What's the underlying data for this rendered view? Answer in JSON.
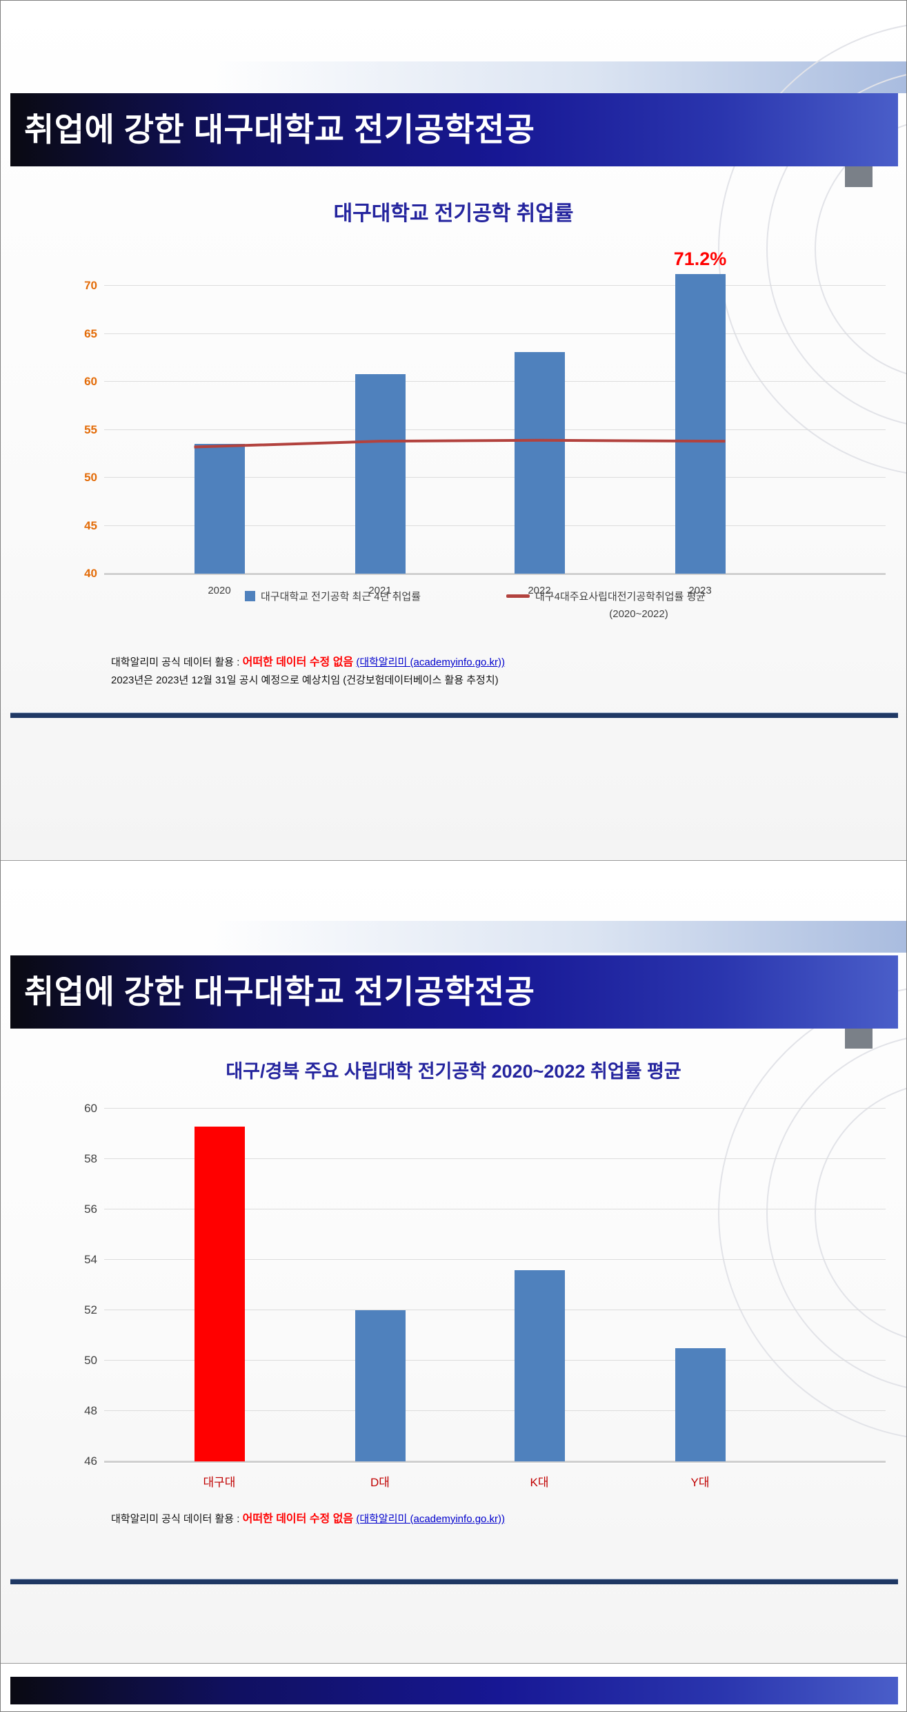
{
  "slide1": {
    "header_title": "취업에 강한 대구대학교 전기공학전공",
    "footnote": {
      "prefix": "대학알리미 공식 데이터 활용 : ",
      "emphasis": "어떠한 데이터 수정 없음",
      "link": "(대학알리미 (academyinfo.go.kr))",
      "line2": "2023년은 2023년 12월 31일 공시 예정으로 예상치임 (건강보험데이터베이스 활용 추정치)"
    }
  },
  "slide2": {
    "header_title": "취업에 강한 대구대학교 전기공학전공",
    "footnote": {
      "prefix": "대학알리미 공식 데이터 활용 : ",
      "emphasis": "어떠한 데이터 수정 없음",
      "link": "(대학알리미 (academyinfo.go.kr))"
    }
  },
  "chart_data": [
    {
      "type": "bar",
      "title": "대구대학교 전기공학 취업률",
      "categories": [
        "2020",
        "2021",
        "2022",
        "2023"
      ],
      "series": [
        {
          "name": "대구대학교 전기공학 최근 4년 취업률",
          "type": "bar",
          "values": [
            53.5,
            60.8,
            63.1,
            71.2
          ],
          "color": "#4f81bd"
        },
        {
          "name": "대구4대주요사립대전기공학취업률 평균",
          "note": "(2020~2022)",
          "type": "line",
          "values": [
            53.2,
            53.8,
            53.9,
            53.8
          ],
          "color": "#b2423e"
        }
      ],
      "data_label": {
        "index": 3,
        "text": "71.2%"
      },
      "ylim": [
        40,
        70
      ],
      "ytick_step": 5,
      "tick_color": "#e36c09",
      "cat_color": "#404040",
      "grid": true,
      "legend_position": "bottom"
    },
    {
      "type": "bar",
      "title": "대구/경북 주요 사립대학  전기공학 2020~2022 취업률 평균",
      "categories": [
        "대구대",
        "D대",
        "K대",
        "Y대"
      ],
      "values": [
        59.3,
        52.0,
        53.6,
        50.5
      ],
      "bar_colors": [
        "#ff0000",
        "#4f81bd",
        "#4f81bd",
        "#4f81bd"
      ],
      "ylim": [
        46,
        60
      ],
      "ytick_step": 2,
      "tick_color": "#404040",
      "cat_color": "#c00000",
      "grid": true,
      "legend_position": "none"
    }
  ],
  "colors": {
    "banner_navy": "#171794",
    "title_navy": "#24249e",
    "rule_navy": "#1f3864",
    "bar_blue": "#4f81bd",
    "bar_red": "#ff0000",
    "line_red": "#b2423e",
    "ytick_orange": "#e36c09",
    "category_red": "#c00000",
    "emphasis_red": "#ff0000",
    "link_blue": "#0000cc"
  }
}
